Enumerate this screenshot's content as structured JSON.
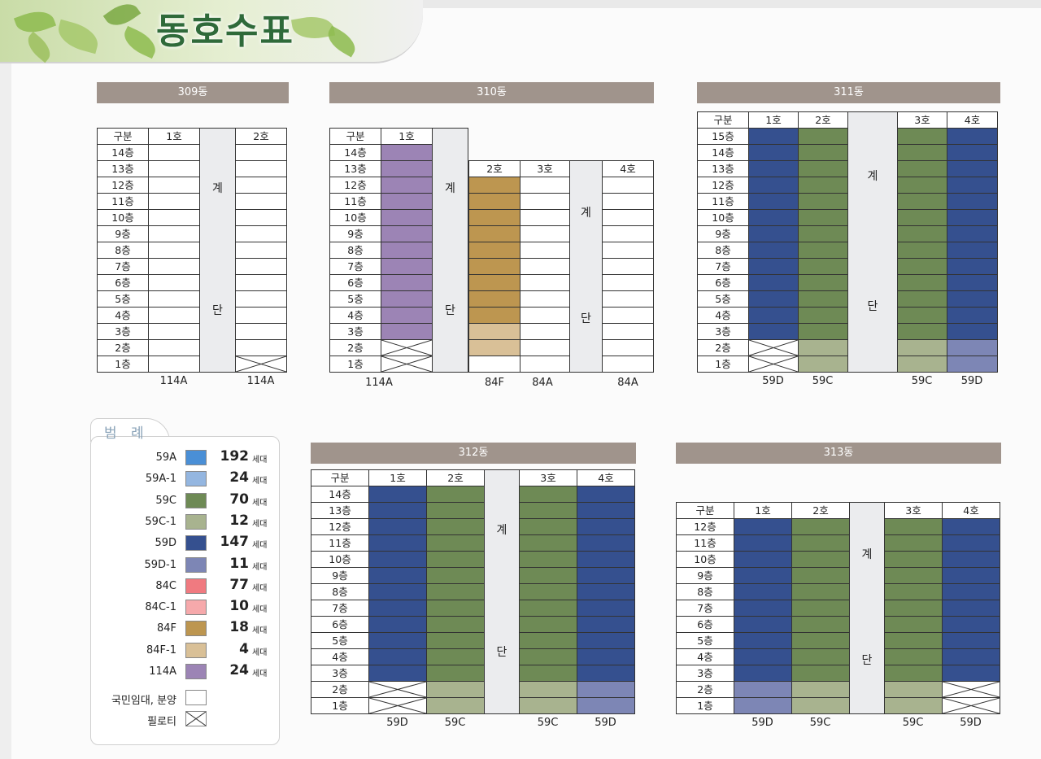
{
  "page": {
    "title": "동호수표"
  },
  "labels": {
    "category": "구분",
    "stair_1": "계",
    "stair_2": "단"
  },
  "colors": {
    "59A": "#4a8fd6",
    "59A-1": "#94b6e0",
    "59C": "#6e8a55",
    "59C-1": "#a8b38f",
    "59D": "#35508f",
    "59D-1": "#7d86b5",
    "84C": "#f07a80",
    "84C-1": "#f6a9ab",
    "84F": "#bd9650",
    "84F-1": "#d9c097",
    "114A": "#9c84b5",
    "rent": "#ffffff"
  },
  "legend": {
    "title": "범 례",
    "unit": "세대",
    "items": [
      {
        "name": "59A",
        "count": "192",
        "color": "#4a8fd6"
      },
      {
        "name": "59A-1",
        "count": "24",
        "color": "#94b6e0"
      },
      {
        "name": "59C",
        "count": "70",
        "color": "#6e8a55"
      },
      {
        "name": "59C-1",
        "count": "12",
        "color": "#a8b38f"
      },
      {
        "name": "59D",
        "count": "147",
        "color": "#35508f"
      },
      {
        "name": "59D-1",
        "count": "11",
        "color": "#7d86b5"
      },
      {
        "name": "84C",
        "count": "77",
        "color": "#f07a80"
      },
      {
        "name": "84C-1",
        "count": "10",
        "color": "#f6a9ab"
      },
      {
        "name": "84F",
        "count": "18",
        "color": "#bd9650"
      },
      {
        "name": "84F-1",
        "count": "4",
        "color": "#d9c097"
      },
      {
        "name": "114A",
        "count": "24",
        "color": "#9c84b5"
      }
    ],
    "rent_label": "국민임대, 분양",
    "piloti_label": "필로티"
  },
  "buildings": [
    {
      "name": "309동",
      "units": [
        "1호",
        "2호"
      ],
      "floors": [
        "14층",
        "13층",
        "12층",
        "11층",
        "10층",
        "9층",
        "8층",
        "7층",
        "6층",
        "5층",
        "4층",
        "3층",
        "2층",
        "1층"
      ],
      "types": [
        "114A",
        "114A"
      ]
    },
    {
      "name": "310동",
      "units": [
        "1호",
        "2호",
        "3호",
        "4호"
      ],
      "floors": [
        "14층",
        "13층",
        "12층",
        "11층",
        "10층",
        "9층",
        "8층",
        "7층",
        "6층",
        "5층",
        "4층",
        "3층",
        "2층",
        "1층"
      ],
      "types": [
        "114A",
        "84F",
        "84A",
        "84A"
      ]
    },
    {
      "name": "311동",
      "units": [
        "1호",
        "2호",
        "3호",
        "4호"
      ],
      "floors": [
        "15층",
        "14층",
        "13층",
        "12층",
        "11층",
        "10층",
        "9층",
        "8층",
        "7층",
        "6층",
        "5층",
        "4층",
        "3층",
        "2층",
        "1층"
      ],
      "types": [
        "59D",
        "59C",
        "59C",
        "59D"
      ]
    },
    {
      "name": "312동",
      "units": [
        "1호",
        "2호",
        "3호",
        "4호"
      ],
      "floors": [
        "14층",
        "13층",
        "12층",
        "11층",
        "10층",
        "9층",
        "8층",
        "7층",
        "6층",
        "5층",
        "4층",
        "3층",
        "2층",
        "1층"
      ],
      "types": [
        "59D",
        "59C",
        "59C",
        "59D"
      ]
    },
    {
      "name": "313동",
      "units": [
        "1호",
        "2호",
        "3호",
        "4호"
      ],
      "floors": [
        "12층",
        "11층",
        "10층",
        "9층",
        "8층",
        "7층",
        "6층",
        "5층",
        "4층",
        "3층",
        "2층",
        "1층"
      ],
      "types": [
        "59D",
        "59C",
        "59C",
        "59D"
      ]
    }
  ]
}
